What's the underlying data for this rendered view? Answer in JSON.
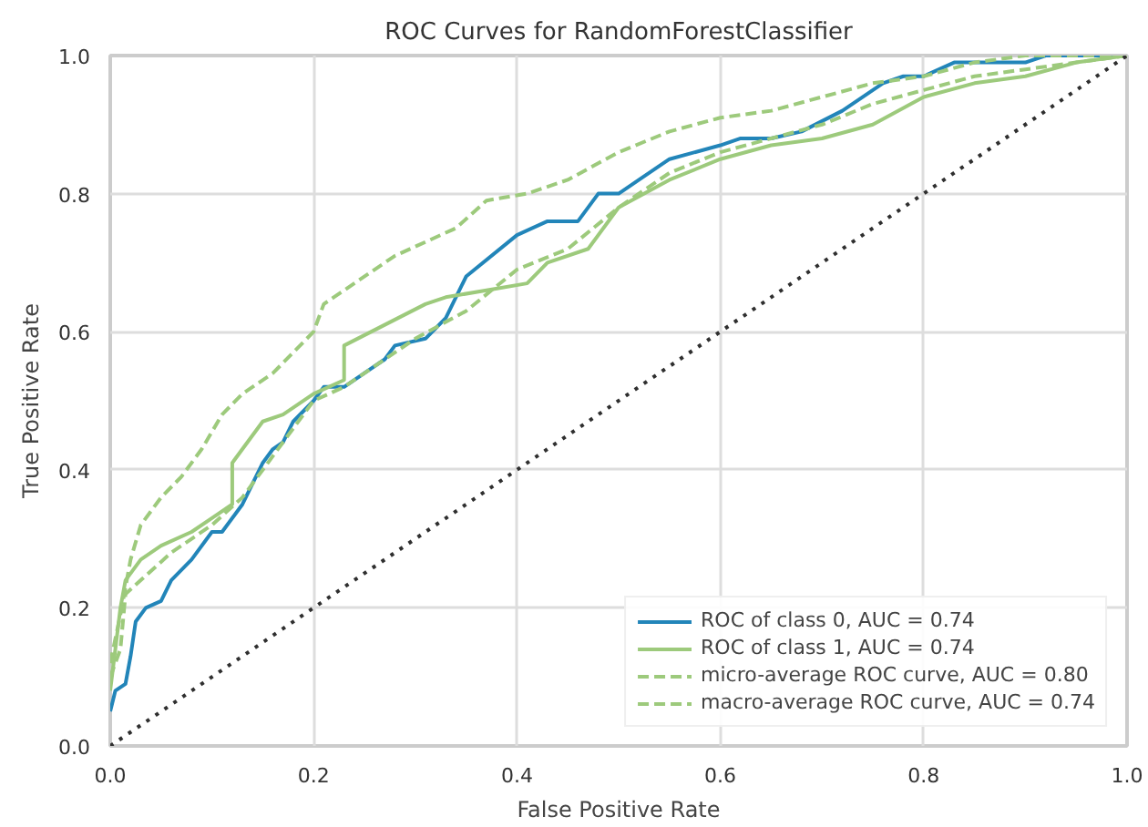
{
  "chart_data": {
    "type": "line",
    "title": "ROC Curves for RandomForestClassifier",
    "xlabel": "False Positive Rate",
    "ylabel": "True Positive Rate",
    "xlim": [
      0,
      1
    ],
    "ylim": [
      0,
      1
    ],
    "xticks": [
      {
        "value": 0,
        "label": "0.0"
      },
      0.2,
      0.4,
      0.6,
      0.8,
      {
        "value": 1,
        "label": "1.0"
      }
    ],
    "yticks": [
      {
        "value": 0,
        "label": "0.0"
      },
      0.2,
      0.4,
      0.6,
      0.8,
      {
        "value": 1,
        "label": "1.0"
      }
    ],
    "grid": true,
    "legend": "bottom right",
    "marker": "none",
    "series": [
      {
        "name": "ROC of class 0, AUC = 0.74",
        "color": "#2285b9",
        "line_style": "solid",
        "x": [
          0,
          0.005,
          0.015,
          0.02,
          0.025,
          0.035,
          0.05,
          0.06,
          0.08,
          0.1,
          0.11,
          0.13,
          0.14,
          0.15,
          0.16,
          0.17,
          0.18,
          0.2,
          0.21,
          0.23,
          0.25,
          0.27,
          0.28,
          0.31,
          0.33,
          0.35,
          0.4,
          0.43,
          0.46,
          0.48,
          0.5,
          0.52,
          0.55,
          0.6,
          0.62,
          0.65,
          0.68,
          0.72,
          0.76,
          0.78,
          0.8,
          0.83,
          0.9,
          0.92,
          1
        ],
        "values": [
          0.05,
          0.08,
          0.09,
          0.13,
          0.18,
          0.2,
          0.21,
          0.24,
          0.27,
          0.31,
          0.31,
          0.35,
          0.38,
          0.41,
          0.43,
          0.44,
          0.47,
          0.5,
          0.52,
          0.52,
          0.54,
          0.56,
          0.58,
          0.59,
          0.62,
          0.68,
          0.74,
          0.76,
          0.76,
          0.8,
          0.8,
          0.82,
          0.85,
          0.87,
          0.88,
          0.88,
          0.89,
          0.92,
          0.96,
          0.97,
          0.97,
          0.99,
          0.99,
          1.0,
          1.0
        ]
      },
      {
        "name": "ROC of class 1, AUC = 0.74",
        "color": "#9dca7c",
        "line_style": "solid",
        "x": [
          0,
          0.01,
          0.015,
          0.03,
          0.05,
          0.08,
          0.1,
          0.12,
          0.12,
          0.15,
          0.17,
          0.2,
          0.23,
          0.23,
          0.27,
          0.31,
          0.33,
          0.37,
          0.41,
          0.43,
          0.47,
          0.5,
          0.55,
          0.6,
          0.65,
          0.7,
          0.75,
          0.8,
          0.85,
          0.9,
          0.95,
          1
        ],
        "values": [
          0.08,
          0.2,
          0.24,
          0.27,
          0.29,
          0.31,
          0.33,
          0.35,
          0.41,
          0.47,
          0.48,
          0.51,
          0.53,
          0.58,
          0.61,
          0.64,
          0.65,
          0.66,
          0.67,
          0.7,
          0.72,
          0.78,
          0.82,
          0.85,
          0.87,
          0.88,
          0.9,
          0.94,
          0.96,
          0.97,
          0.99,
          1.0
        ]
      },
      {
        "name": "micro-average ROC curve, AUC = 0.80",
        "color": "#9dca7c",
        "line_style": "dashed",
        "x": [
          0,
          0.01,
          0.02,
          0.03,
          0.05,
          0.07,
          0.09,
          0.11,
          0.13,
          0.16,
          0.18,
          0.2,
          0.21,
          0.24,
          0.28,
          0.31,
          0.34,
          0.37,
          0.41,
          0.45,
          0.5,
          0.55,
          0.6,
          0.65,
          0.7,
          0.75,
          0.8,
          0.85,
          0.9,
          1
        ],
        "values": [
          0.12,
          0.19,
          0.27,
          0.32,
          0.36,
          0.39,
          0.43,
          0.48,
          0.51,
          0.54,
          0.57,
          0.6,
          0.64,
          0.67,
          0.71,
          0.73,
          0.75,
          0.79,
          0.8,
          0.82,
          0.86,
          0.89,
          0.91,
          0.92,
          0.94,
          0.96,
          0.97,
          0.99,
          1.0,
          1.0
        ]
      },
      {
        "name": "macro-average ROC curve, AUC = 0.74",
        "color": "#9dca7c",
        "line_style": "dashed",
        "x": [
          0,
          0.01,
          0.015,
          0.03,
          0.06,
          0.1,
          0.13,
          0.16,
          0.2,
          0.23,
          0.26,
          0.3,
          0.35,
          0.4,
          0.45,
          0.5,
          0.55,
          0.6,
          0.65,
          0.7,
          0.75,
          0.8,
          0.85,
          0.9,
          0.95,
          1
        ],
        "values": [
          0.1,
          0.14,
          0.22,
          0.24,
          0.28,
          0.32,
          0.36,
          0.42,
          0.5,
          0.52,
          0.55,
          0.59,
          0.63,
          0.69,
          0.72,
          0.78,
          0.83,
          0.86,
          0.88,
          0.9,
          0.93,
          0.95,
          0.97,
          0.98,
          0.99,
          1.0
        ]
      },
      {
        "color": "#2f2f2f",
        "line_style": "dotted",
        "x": [
          0,
          1
        ],
        "values": [
          0,
          1
        ]
      }
    ]
  }
}
